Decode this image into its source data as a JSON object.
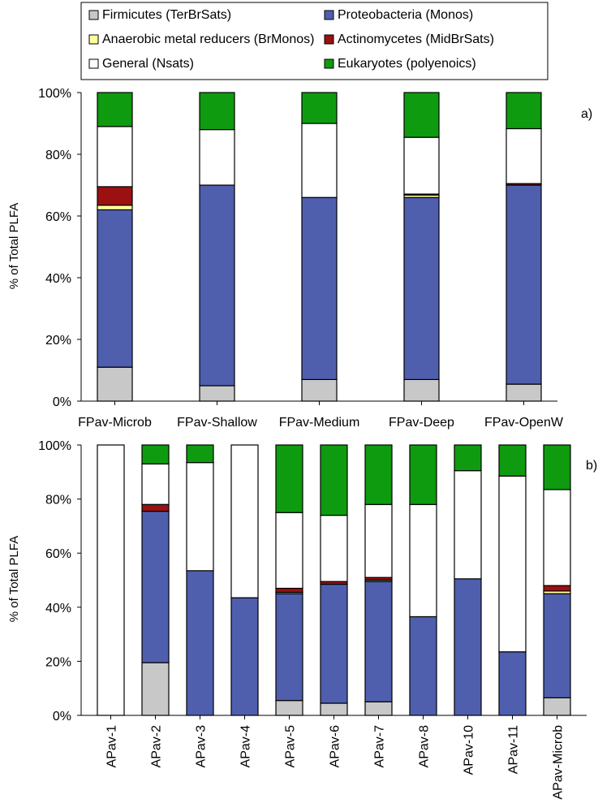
{
  "legend": {
    "entries": [
      {
        "key": "firmicutes",
        "label": "Firmicutes (TerBrSats)",
        "color": "#c8c8c8"
      },
      {
        "key": "proteobacteria",
        "label": "Proteobacteria (Monos)",
        "color": "#4f5fae"
      },
      {
        "key": "anaerobic",
        "label": "Anaerobic metal reducers (BrMonos)",
        "color": "#ffff99"
      },
      {
        "key": "actinomycetes",
        "label": "Actinomycetes (MidBrSats)",
        "color": "#9b1111"
      },
      {
        "key": "general",
        "label": "General (Nsats)",
        "color": "#ffffff"
      },
      {
        "key": "eukaryotes",
        "label": "Eukaryotes (polyenoics)",
        "color": "#0f9b0f"
      }
    ]
  },
  "chart_data": [
    {
      "type": "bar",
      "stacked": true,
      "panel_label": "a)",
      "ylabel": "% of Total PLFA",
      "ylim": [
        0,
        100
      ],
      "yticks": [
        "0%",
        "20%",
        "40%",
        "60%",
        "80%",
        "100%"
      ],
      "categories": [
        "FPav-Microb",
        "FPav-Shallow",
        "FPav-Medium",
        "FPav-Deep",
        "FPav-OpenW"
      ],
      "series": [
        {
          "key": "firmicutes",
          "name": "Firmicutes (TerBrSats)",
          "values": [
            11,
            5,
            7,
            7,
            5.5
          ]
        },
        {
          "key": "proteobacteria",
          "name": "Proteobacteria (Monos)",
          "values": [
            51,
            65,
            59,
            59,
            64.5
          ]
        },
        {
          "key": "anaerobic",
          "name": "Anaerobic metal reducers (BrMonos)",
          "values": [
            1.5,
            0,
            0,
            0.8,
            0
          ]
        },
        {
          "key": "actinomycetes",
          "name": "Actinomycetes (MidBrSats)",
          "values": [
            6,
            0,
            0,
            0.3,
            0.5
          ]
        },
        {
          "key": "general",
          "name": "General (Nsats)",
          "values": [
            19.5,
            18,
            24,
            18.4,
            17.8
          ]
        },
        {
          "key": "eukaryotes",
          "name": "Eukaryotes (polyenoics)",
          "values": [
            11,
            12,
            10,
            14.5,
            11.7
          ]
        }
      ]
    },
    {
      "type": "bar",
      "stacked": true,
      "panel_label": "b)",
      "ylabel": "% of Total PLFA",
      "ylim": [
        0,
        100
      ],
      "yticks": [
        "0%",
        "20%",
        "40%",
        "60%",
        "80%",
        "100%"
      ],
      "categories": [
        "APav-1",
        "APav-2",
        "APav-3",
        "APav-4",
        "APav-5",
        "APav-6",
        "APav-7",
        "APav-8",
        "APav-10",
        "APav-11",
        "APav-Microb"
      ],
      "series": [
        {
          "key": "firmicutes",
          "name": "Firmicutes (TerBrSats)",
          "values": [
            0,
            19.5,
            0,
            0,
            5.5,
            4.5,
            5,
            0,
            0,
            0,
            6.5
          ]
        },
        {
          "key": "proteobacteria",
          "name": "Proteobacteria (Monos)",
          "values": [
            0,
            56,
            53.5,
            43.5,
            39.5,
            44,
            44.5,
            36.5,
            50.5,
            23.5,
            38.5
          ]
        },
        {
          "key": "anaerobic",
          "name": "Anaerobic metal reducers (BrMonos)",
          "values": [
            0,
            0,
            0,
            0,
            0.5,
            0,
            0.5,
            0,
            0,
            0,
            1
          ]
        },
        {
          "key": "actinomycetes",
          "name": "Actinomycetes (MidBrSats)",
          "values": [
            0,
            2.5,
            0,
            0,
            1.5,
            1,
            1,
            0,
            0,
            0,
            2
          ]
        },
        {
          "key": "general",
          "name": "General (Nsats)",
          "values": [
            100,
            15,
            40,
            56.5,
            28,
            24.5,
            27,
            41.5,
            40,
            65,
            35.5
          ]
        },
        {
          "key": "eukaryotes",
          "name": "Eukaryotes (polyenoics)",
          "values": [
            0,
            7,
            6.5,
            0,
            25,
            26,
            22,
            22,
            9.5,
            11.5,
            16.5
          ]
        }
      ]
    }
  ]
}
